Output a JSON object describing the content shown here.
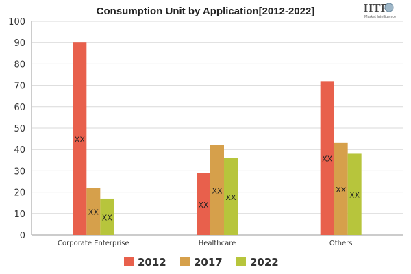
{
  "logo": {
    "text": "HTF",
    "subtext": "Market Intelligence"
  },
  "colors": {
    "2012": "#e8604c",
    "2017": "#d6a04b",
    "2022": "#b7c53c"
  },
  "chart_data": {
    "type": "bar",
    "title": "Consumption Unit by  Application[2012-2022]",
    "xlabel": "",
    "ylabel": "",
    "ylim": [
      0,
      100
    ],
    "yticks": [
      0,
      10,
      20,
      30,
      40,
      50,
      60,
      70,
      80,
      90,
      100
    ],
    "categories": [
      "Corporate Enterprise",
      "Healthcare",
      "Others"
    ],
    "series": [
      {
        "name": "2012",
        "values": [
          90,
          29,
          72
        ]
      },
      {
        "name": "2017",
        "values": [
          22,
          42,
          43
        ]
      },
      {
        "name": "2022",
        "values": [
          17,
          36,
          38
        ]
      }
    ],
    "data_label": "XX",
    "legend": "bottom",
    "grid": true
  }
}
